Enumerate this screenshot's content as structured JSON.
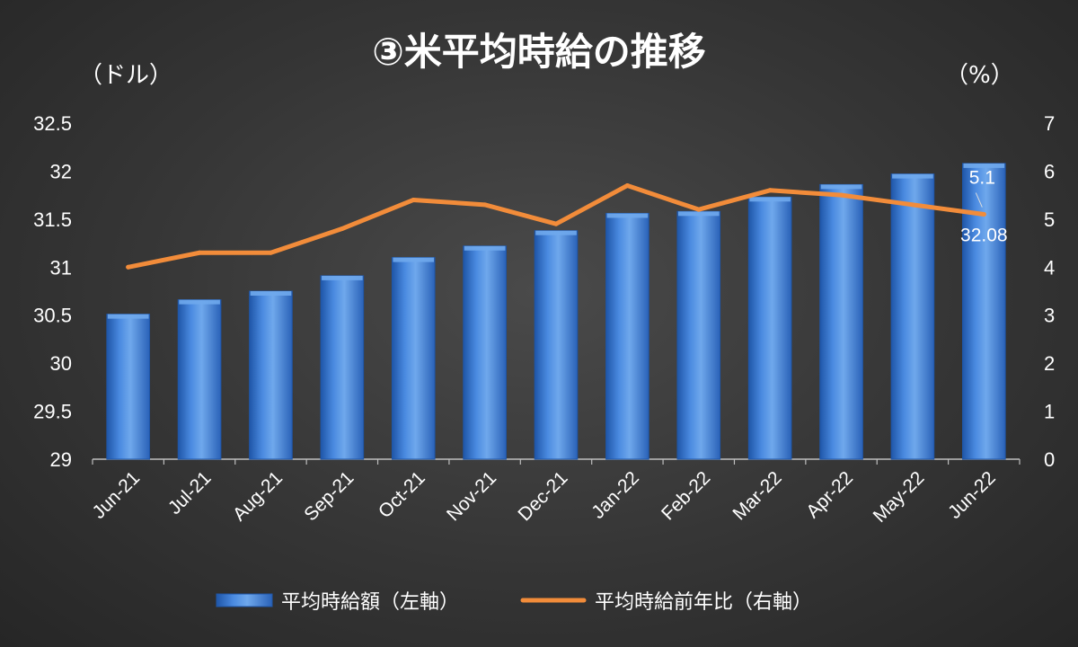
{
  "colors": {
    "background": "#333333",
    "bar": "#3f7fd6",
    "bar_light": "#6fa8ec",
    "bar_dark": "#1f56a8",
    "line": "#f28c3a",
    "text": "#ffffff",
    "axis": "#bfbfbf"
  },
  "chart_data": {
    "type": "bar",
    "combo": "bar+line",
    "title": "③米平均時給の推移",
    "y_left_unit": "（ドル）",
    "y_right_unit": "（%）",
    "categories": [
      "Jun-21",
      "Jul-21",
      "Aug-21",
      "Sep-21",
      "Oct-21",
      "Nov-21",
      "Dec-21",
      "Jan-22",
      "Feb-22",
      "Mar-22",
      "Apr-22",
      "May-22",
      "Jun-22"
    ],
    "ylim_left": [
      29,
      32.5
    ],
    "yticks_left": [
      "29",
      "29.5",
      "30",
      "30.5",
      "31",
      "31.5",
      "32",
      "32.5"
    ],
    "ylim_right": [
      0,
      7
    ],
    "yticks_right": [
      "0",
      "1",
      "2",
      "3",
      "4",
      "5",
      "6",
      "7"
    ],
    "series": [
      {
        "name": "平均時給額（左軸）",
        "type": "bar",
        "axis": "left",
        "values": [
          30.51,
          30.66,
          30.75,
          30.91,
          31.1,
          31.22,
          31.38,
          31.56,
          31.58,
          31.73,
          31.86,
          31.97,
          32.08
        ]
      },
      {
        "name": "平均時給前年比（右軸）",
        "type": "line",
        "axis": "right",
        "values": [
          4.0,
          4.3,
          4.3,
          4.8,
          5.4,
          5.3,
          4.9,
          5.7,
          5.2,
          5.6,
          5.5,
          5.3,
          5.1
        ]
      }
    ],
    "data_labels": [
      {
        "series": 1,
        "index": 12,
        "text": "5.1"
      },
      {
        "series": 0,
        "index": 12,
        "text": "32.08"
      }
    ],
    "legend": {
      "placement": "bottom"
    },
    "grid": false
  }
}
